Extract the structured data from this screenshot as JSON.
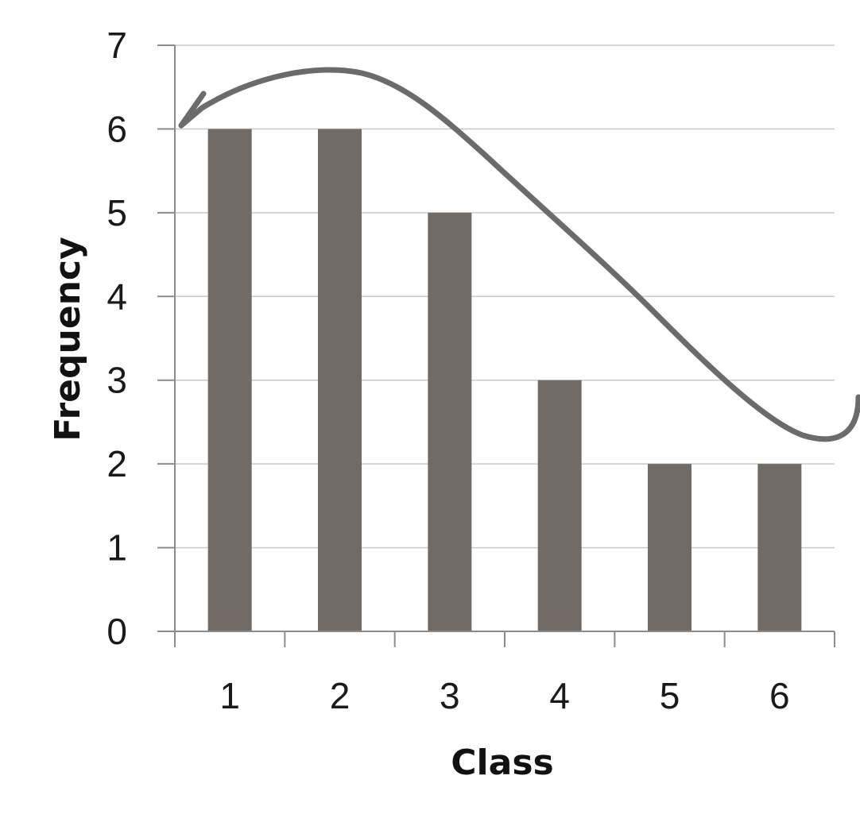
{
  "chart_data": {
    "type": "bar",
    "categories": [
      "1",
      "2",
      "3",
      "4",
      "5",
      "6"
    ],
    "values": [
      6,
      6,
      5,
      3,
      2,
      2
    ],
    "title": "",
    "xlabel": "Class",
    "ylabel": "Frequency",
    "ylim": [
      0,
      7
    ],
    "yticks": [
      "0",
      "1",
      "2",
      "3",
      "4",
      "5",
      "6",
      "7"
    ],
    "grid": true,
    "legend": "none",
    "bar_color": "#726a64",
    "annotation": "hand-drawn curve over bar tops, right-skewed shape"
  }
}
